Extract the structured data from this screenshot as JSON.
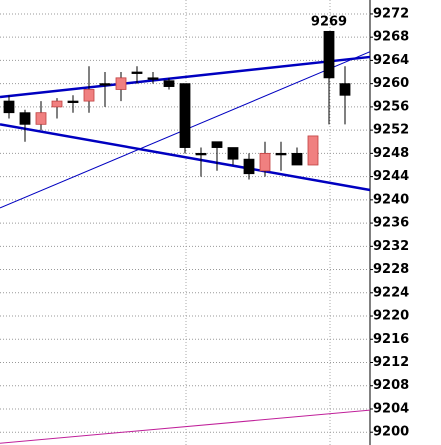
{
  "chart_data": {
    "type": "candlestick",
    "categories": [
      null,
      null,
      null,
      null,
      null,
      null,
      null,
      null,
      null,
      null,
      null,
      null,
      null,
      null,
      null,
      null,
      null,
      null,
      null,
      null,
      null,
      null
    ],
    "open": [
      9257,
      9255,
      9253,
      9256,
      9257,
      9257,
      9260,
      9259,
      9262,
      9261,
      9260.5,
      9260,
      9248,
      9250,
      9249,
      9247,
      9245,
      9248,
      9248,
      9246,
      9269,
      9260
    ],
    "high": [
      9258,
      9255.5,
      9257,
      9257.5,
      9258,
      9263,
      9262,
      9262,
      9263,
      9262,
      9261,
      9260,
      9249,
      9250,
      9249,
      9248,
      9250,
      9250,
      9249,
      9251,
      9269,
      9263
    ],
    "low": [
      9254,
      9250,
      9252,
      9254,
      9255,
      9255,
      9256,
      9257,
      9260,
      9260,
      9259,
      9248,
      9244,
      9245,
      9246,
      9243.5,
      9244,
      9245,
      9246,
      9246,
      9253,
      9253
    ],
    "close": [
      9255,
      9253,
      9255,
      9257,
      9257,
      9259,
      9260,
      9261,
      9262,
      9261,
      9259.5,
      9249,
      9248,
      9249,
      9247,
      9244.5,
      9248,
      9248,
      9246,
      9251,
      9261,
      9258
    ],
    "up_color": "#f08080",
    "down_color": "#000000",
    "trendlines": [
      {
        "color": "#0000c0",
        "width": 2.5,
        "values": [
          9257.7,
          9264.6
        ]
      },
      {
        "color": "#0000c0",
        "width": 2.5,
        "values": [
          9253,
          9241.7
        ]
      },
      {
        "color": "#0000c0",
        "width": 1,
        "values": [
          9238.6,
          9265.5
        ]
      },
      {
        "color": "#c0209a",
        "width": 1,
        "values": [
          9198.1,
          9203.8
        ]
      }
    ],
    "annotation": "9269",
    "ylim": [
      9197.8,
      9274.4
    ],
    "yticks": [
      9200,
      9204,
      9208,
      9212,
      9216,
      9220,
      9224,
      9228,
      9232,
      9236,
      9240,
      9244,
      9248,
      9252,
      9256,
      9260,
      9264,
      9268,
      9272
    ],
    "grid": true
  }
}
